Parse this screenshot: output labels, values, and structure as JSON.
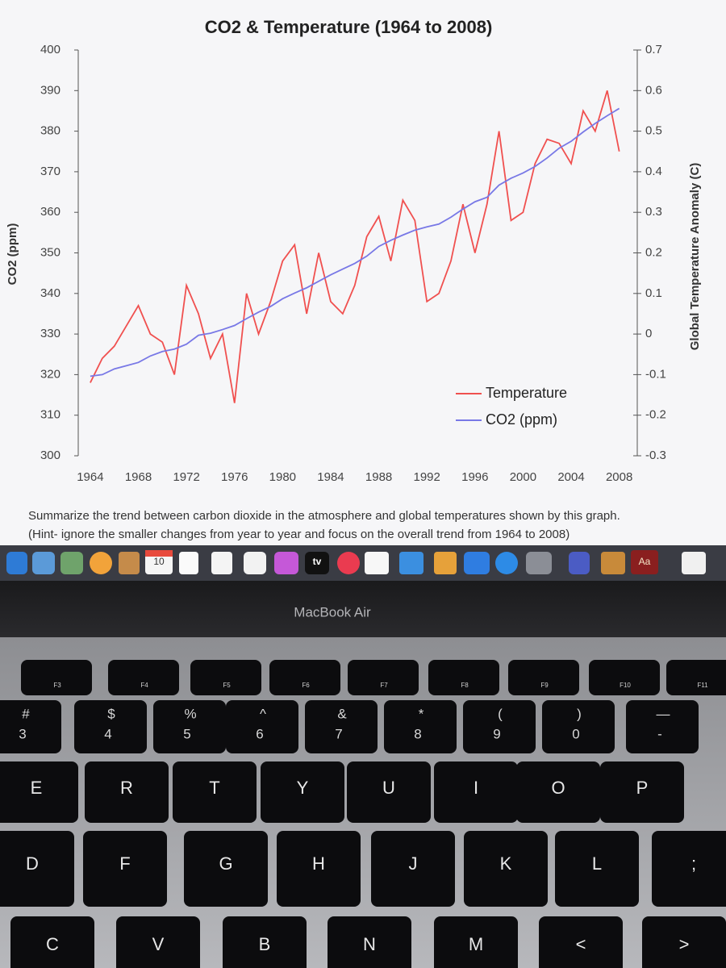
{
  "chart_data": {
    "type": "line",
    "title": "CO2 & Temperature (1964 to 2008)",
    "ylabel": "CO2 (ppm)",
    "y2label": "Global Temperature Anomaly (C)",
    "x": [
      1964,
      1965,
      1966,
      1967,
      1968,
      1969,
      1970,
      1971,
      1972,
      1973,
      1974,
      1975,
      1976,
      1977,
      1978,
      1979,
      1980,
      1981,
      1982,
      1983,
      1984,
      1985,
      1986,
      1987,
      1988,
      1989,
      1990,
      1991,
      1992,
      1993,
      1994,
      1995,
      1996,
      1997,
      1998,
      1999,
      2000,
      2001,
      2002,
      2003,
      2004,
      2005,
      2006,
      2007,
      2008
    ],
    "xlim": [
      1963,
      2009.5
    ],
    "xticks": [
      1964,
      1968,
      1972,
      1976,
      1980,
      1984,
      1988,
      1992,
      1996,
      2000,
      2004,
      2008
    ],
    "ylim": [
      300,
      400
    ],
    "yticks": [
      300,
      310,
      320,
      330,
      340,
      350,
      360,
      370,
      380,
      390,
      400
    ],
    "y2lim": [
      -0.3,
      0.7
    ],
    "y2ticks": [
      -0.3,
      -0.2,
      -0.1,
      0,
      0.1,
      0.2,
      0.3,
      0.4,
      0.5,
      0.6,
      0.7
    ],
    "grid": false,
    "legend": "lower right",
    "series": [
      {
        "name": "Temperature",
        "color": "#f0504f",
        "axis": "y2",
        "values": [
          -0.12,
          -0.06,
          -0.03,
          0.02,
          0.07,
          0.0,
          -0.02,
          -0.1,
          0.12,
          0.05,
          -0.06,
          0.0,
          -0.17,
          0.1,
          0.0,
          0.08,
          0.18,
          0.22,
          0.05,
          0.2,
          0.08,
          0.05,
          0.12,
          0.24,
          0.29,
          0.18,
          0.33,
          0.28,
          0.08,
          0.1,
          0.18,
          0.32,
          0.2,
          0.32,
          0.5,
          0.28,
          0.3,
          0.42,
          0.48,
          0.47,
          0.42,
          0.55,
          0.5,
          0.6,
          0.45
        ]
      },
      {
        "name": "CO2 (ppm)",
        "color": "#7878e6",
        "values": [
          319.6,
          320.0,
          321.4,
          322.2,
          323.0,
          324.6,
          325.7,
          326.3,
          327.5,
          329.7,
          330.2,
          331.1,
          332.1,
          333.8,
          335.4,
          336.8,
          338.7,
          340.1,
          341.4,
          343.0,
          344.6,
          346.0,
          347.4,
          349.2,
          351.6,
          353.1,
          354.4,
          355.6,
          356.4,
          357.1,
          358.8,
          360.8,
          362.6,
          363.7,
          366.7,
          368.4,
          369.7,
          371.3,
          373.4,
          375.8,
          377.5,
          379.8,
          381.9,
          383.8,
          385.6
        ]
      }
    ]
  },
  "prompt": [
    "Summarize the trend between carbon dioxide in the atmosphere and global temperatures shown by this graph.",
    "(Hint- ignore the smaller changes from year to year and focus on the overall trend from 1964 to 2008)"
  ],
  "dock": {
    "calendar_day": "10",
    "tv_label": "tv",
    "dictionary_label": "Aa"
  },
  "device_label": "MacBook Air",
  "keyboard": {
    "function_row": [
      "F3",
      "F4",
      "F5",
      "F6",
      "F7",
      "F8",
      "F9",
      "F10",
      "F11"
    ],
    "number_row": [
      {
        "shift": "#",
        "key": "3"
      },
      {
        "shift": "$",
        "key": "4"
      },
      {
        "shift": "%",
        "key": "5"
      },
      {
        "shift": "^",
        "key": "6"
      },
      {
        "shift": "&",
        "key": "7"
      },
      {
        "shift": "*",
        "key": "8"
      },
      {
        "shift": "(",
        "key": "9"
      },
      {
        "shift": ")",
        "key": "0"
      },
      {
        "shift": "—",
        "key": "-"
      }
    ],
    "top_row": [
      "E",
      "R",
      "T",
      "Y",
      "U",
      "I",
      "O",
      "P"
    ],
    "home_row": [
      "D",
      "F",
      "G",
      "H",
      "J",
      "K",
      "L",
      ";"
    ],
    "bottom_row": [
      "C",
      "V",
      "B",
      "N",
      "M",
      "<",
      ">"
    ]
  }
}
